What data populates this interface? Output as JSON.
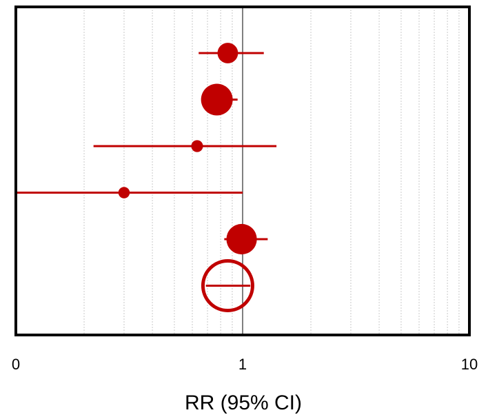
{
  "chart_data": {
    "type": "scatter",
    "subtype": "forest-plot",
    "title": "",
    "xlabel": "RR (95% CI)",
    "ylabel": "",
    "x_scale": "log",
    "xlim": [
      0.1,
      10
    ],
    "x_ticks": [
      {
        "value": 0.1,
        "label": "0"
      },
      {
        "value": 1,
        "label": "1"
      },
      {
        "value": 10,
        "label": "10"
      }
    ],
    "reference_line": 1,
    "grid": "vertical-minor-dotted",
    "colors": {
      "marker": "#c00000",
      "frame": "#000000",
      "grid": "#c8c8c8"
    },
    "studies": [
      {
        "rr": 0.86,
        "ci_low": 0.64,
        "ci_high": 1.24,
        "weight": 0.55
      },
      {
        "rr": 0.77,
        "ci_low": 0.67,
        "ci_high": 0.95,
        "weight": 1.0
      },
      {
        "rr": 0.63,
        "ci_low": 0.22,
        "ci_high": 1.41,
        "weight": 0.2
      },
      {
        "rr": 0.3,
        "ci_low": 0.1,
        "ci_high": 1.0,
        "weight": 0.18
      },
      {
        "rr": 0.99,
        "ci_low": 0.83,
        "ci_high": 1.29,
        "weight": 0.95
      }
    ],
    "pooled": {
      "rr": 0.86,
      "ci_low": 0.77,
      "ci_high": 0.94,
      "marker": "open-circle"
    }
  }
}
